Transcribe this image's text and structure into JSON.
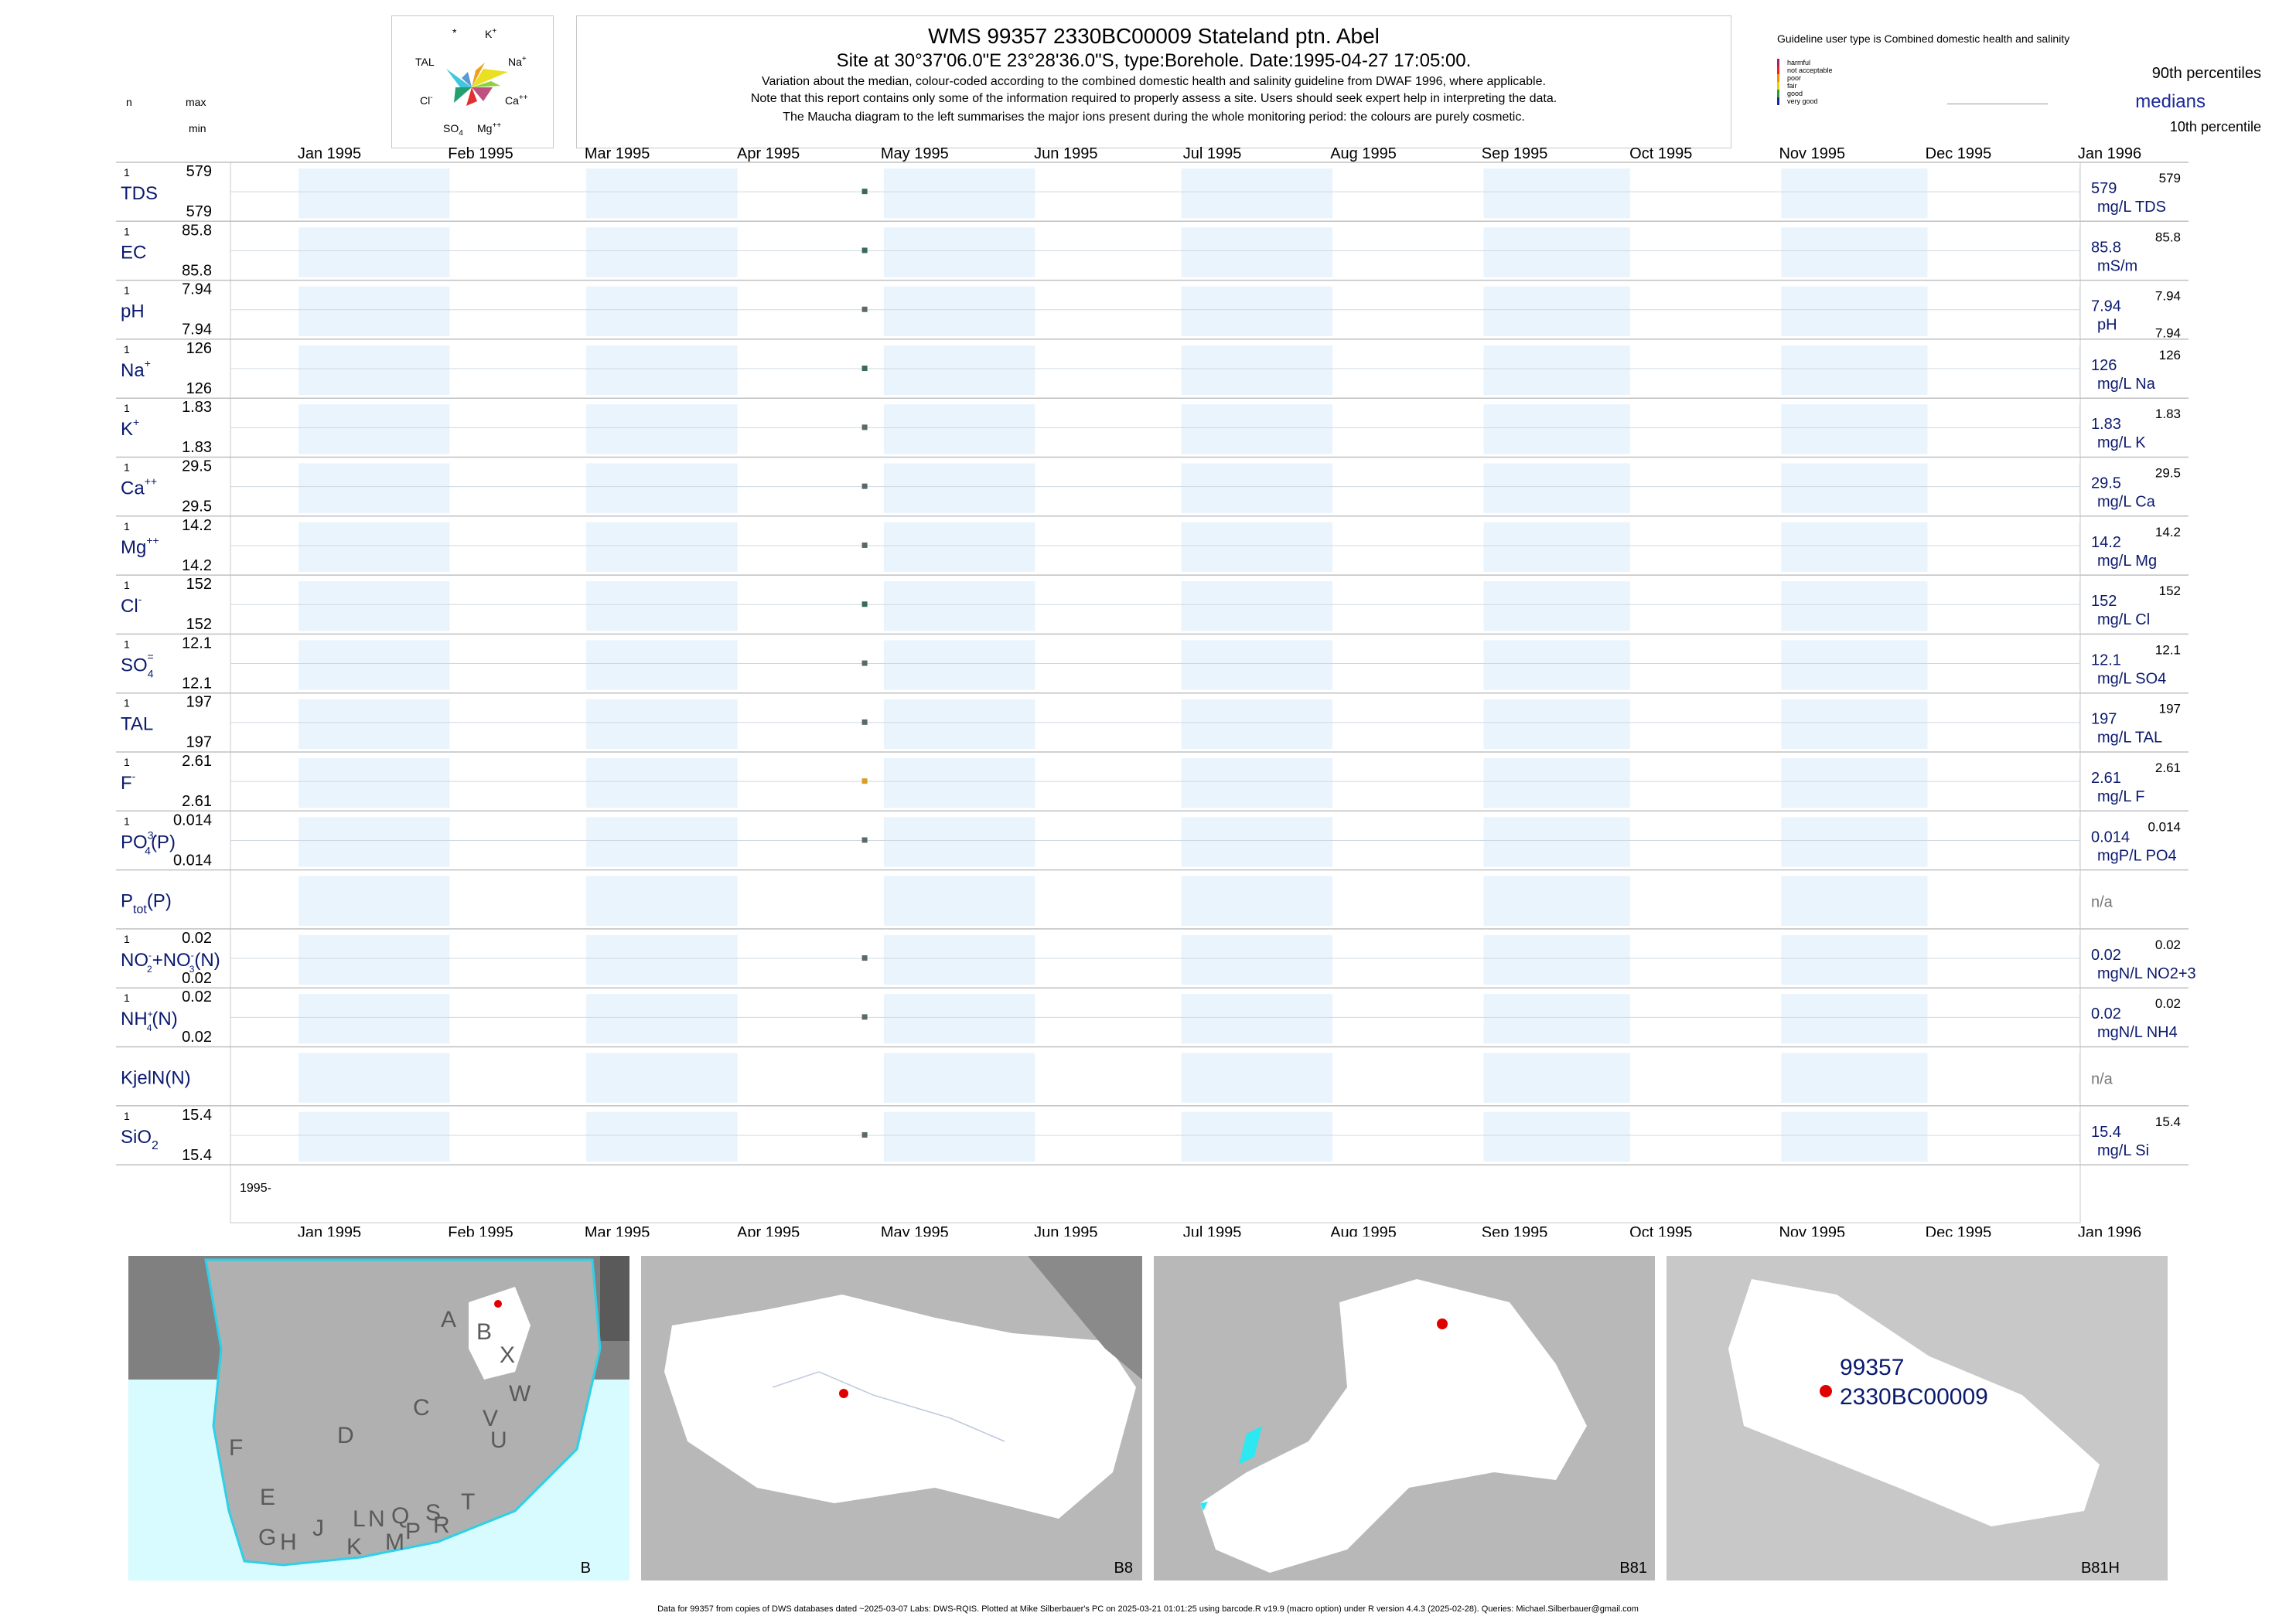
{
  "header": {
    "title": "WMS 99357 2330BC00009 Stateland ptn. Abel",
    "subtitle": "Site at 30°37'06.0\"E 23°28'36.0\"S, type:Borehole. Date:1995-04-27 17:05:00.",
    "note1": "Variation about the median,  colour-coded according to the combined domestic health and salinity guideline from DWAF 1996, where applicable.",
    "note2": "Note that this report contains only some of the information required to properly assess a site. Users should seek expert help in interpreting the data.",
    "note3": "The Maucha diagram to the left summarises the major ions present during the whole monitoring period: the colours are purely cosmetic."
  },
  "maucha": {
    "labels": {
      "star": "*",
      "k": "K+",
      "tal": "TAL",
      "na": "Na+",
      "cl": "Cl-",
      "ca": "Ca++",
      "so4": "SO4=",
      "mg": "Mg++"
    }
  },
  "legend": {
    "guideline_title": "Guideline user type is Combined domestic health and salinity",
    "classes": [
      {
        "label": "harmful",
        "color": "#a0207a"
      },
      {
        "label": "not acceptable",
        "color": "#ff1a1a"
      },
      {
        "label": "poor",
        "color": "#ff8c00"
      },
      {
        "label": "fair",
        "color": "#e8d000"
      },
      {
        "label": "good",
        "color": "#2aa02a"
      },
      {
        "label": "very good",
        "color": "#1a2a9a"
      }
    ],
    "p90": "90th percentiles",
    "medians": "medians",
    "p10": "10th percentile"
  },
  "left_header": {
    "n": "n",
    "max": "max",
    "min": "min"
  },
  "months_top": [
    "Jan 1995",
    "Feb 1995",
    "Mar 1995",
    "Apr 1995",
    "May 1995",
    "Jun 1995",
    "Jul 1995",
    "Aug 1995",
    "Sep 1995",
    "Oct 1995",
    "Nov 1995",
    "Dec 1995",
    "Jan 1996"
  ],
  "months_bottom": [
    "Jan 1995",
    "Feb 1995",
    "Mar 1995",
    "Apr 1995",
    "May 1995",
    "Jun 1995",
    "Jul 1995",
    "Aug 1995",
    "Sep 1995",
    "Oct 1995",
    "Nov 1995",
    "Dec 1995",
    "Jan 1996"
  ],
  "year_label": "1995-",
  "chart_data": {
    "type": "scatter",
    "x_range": [
      "1995-01-01",
      "1996-01-01"
    ],
    "sample_date": "1995-04-27",
    "series": [
      {
        "name": "TDS",
        "n": "1",
        "max": "579",
        "min": "579",
        "value": 579,
        "median": "579",
        "p90": "579",
        "p10": "",
        "unit": "mg/L TDS",
        "color": "#3a6a5a"
      },
      {
        "name": "EC",
        "n": "1",
        "max": "85.8",
        "min": "85.8",
        "value": 85.8,
        "median": "85.8",
        "p90": "85.8",
        "p10": "",
        "unit": "mS/m",
        "color": "#3a6a5a"
      },
      {
        "name": "pH",
        "n": "1",
        "max": "7.94",
        "min": "7.94",
        "value": 7.94,
        "median": "7.94",
        "p90": "7.94",
        "p10": "7.94",
        "unit": "pH",
        "color": "#5a6a6a"
      },
      {
        "name": "Na+",
        "n": "1",
        "max": "126",
        "min": "126",
        "value": 126,
        "median": "126",
        "p90": "126",
        "p10": "",
        "unit": "mg/L Na",
        "color": "#3a6a5a"
      },
      {
        "name": "K+",
        "n": "1",
        "max": "1.83",
        "min": "1.83",
        "value": 1.83,
        "median": "1.83",
        "p90": "1.83",
        "p10": "",
        "unit": "mg/L K",
        "color": "#5a6a6a"
      },
      {
        "name": "Ca++",
        "n": "1",
        "max": "29.5",
        "min": "29.5",
        "value": 29.5,
        "median": "29.5",
        "p90": "29.5",
        "p10": "",
        "unit": "mg/L Ca",
        "color": "#5a6a6a"
      },
      {
        "name": "Mg++",
        "n": "1",
        "max": "14.2",
        "min": "14.2",
        "value": 14.2,
        "median": "14.2",
        "p90": "14.2",
        "p10": "",
        "unit": "mg/L Mg",
        "color": "#5a6a6a"
      },
      {
        "name": "Cl-",
        "n": "1",
        "max": "152",
        "min": "152",
        "value": 152,
        "median": "152",
        "p90": "152",
        "p10": "",
        "unit": "mg/L Cl",
        "color": "#3a6a5a"
      },
      {
        "name": "SO4=",
        "n": "1",
        "max": "12.1",
        "min": "12.1",
        "value": 12.1,
        "median": "12.1",
        "p90": "12.1",
        "p10": "",
        "unit": "mg/L SO4",
        "color": "#5a6a6a"
      },
      {
        "name": "TAL",
        "n": "1",
        "max": "197",
        "min": "197",
        "value": 197,
        "median": "197",
        "p90": "197",
        "p10": "",
        "unit": "mg/L TAL",
        "color": "#5a6a6a"
      },
      {
        "name": "F-",
        "n": "1",
        "max": "2.61",
        "min": "2.61",
        "value": 2.61,
        "median": "2.61",
        "p90": "2.61",
        "p10": "",
        "unit": "mg/L F",
        "color": "#d4a020"
      },
      {
        "name": "PO4(3-)(P)",
        "n": "1",
        "max": "0.014",
        "min": "0.014",
        "value": 0.014,
        "median": "0.014",
        "p90": "0.014",
        "p10": "",
        "unit": "mgP/L PO4",
        "color": "#5a6a6a"
      },
      {
        "name": "Ptot(P)",
        "n": "",
        "max": "",
        "min": "",
        "value": null,
        "median": "n/a",
        "p90": "",
        "p10": "",
        "unit": "",
        "color": "#5a6a6a"
      },
      {
        "name": "NO2-+NO3-(N)",
        "n": "1",
        "max": "0.02",
        "min": "0.02",
        "value": 0.02,
        "median": "0.02",
        "p90": "0.02",
        "p10": "",
        "unit": "mgN/L NO2+3",
        "color": "#5a6a6a"
      },
      {
        "name": "NH4+(N)",
        "n": "1",
        "max": "0.02",
        "min": "0.02",
        "value": 0.02,
        "median": "0.02",
        "p90": "0.02",
        "p10": "",
        "unit": "mgN/L NH4",
        "color": "#5a6a6a"
      },
      {
        "name": "KjelN(N)",
        "n": "",
        "max": "",
        "min": "",
        "value": null,
        "median": "n/a",
        "p90": "",
        "p10": "",
        "unit": "",
        "color": "#5a6a6a"
      },
      {
        "name": "SiO2",
        "n": "1",
        "max": "15.4",
        "min": "15.4",
        "value": 15.4,
        "median": "15.4",
        "p90": "15.4",
        "p10": "",
        "unit": "mg/L Si",
        "color": "#5a6a6a"
      }
    ]
  },
  "maps": {
    "labels": [
      "B",
      "B8",
      "B81",
      "B81H"
    ],
    "site_id": "99357",
    "site_code": "2330BC00009",
    "region_letters": [
      "A",
      "B",
      "X",
      "W",
      "C",
      "V",
      "U",
      "D",
      "F",
      "E",
      "T",
      "L",
      "N",
      "Q",
      "S",
      "R",
      "P",
      "M",
      "K",
      "J",
      "H",
      "G"
    ]
  },
  "footer": "Data for 99357 from copies of DWS databases dated ~2025-03-07 Labs: DWS-RQIS. Plotted at Mike Silberbauer's PC on 2025-03-21 01:01:25 using barcode.R v19.9 (macro option) under R version 4.4.3 (2025-02-28). Queries: Michael.Silberbauer@gmail.com"
}
